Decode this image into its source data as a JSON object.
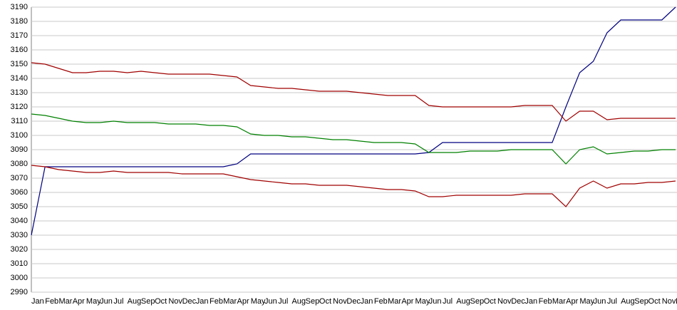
{
  "chart_data": {
    "type": "line",
    "categories": [
      "Jan",
      "Feb",
      "Mar",
      "Apr",
      "May",
      "Jun",
      "Jul",
      "Aug",
      "Sep",
      "Oct",
      "Nov",
      "Dec",
      "Jan",
      "Feb",
      "Mar",
      "Apr",
      "May",
      "Jun",
      "Jul",
      "Aug",
      "Sep",
      "Oct",
      "Nov",
      "Dec",
      "Jan",
      "Feb",
      "Mar",
      "Apr",
      "May",
      "Jun",
      "Jul",
      "Aug",
      "Sep",
      "Oct",
      "Nov",
      "Dec",
      "Jan",
      "Feb",
      "Mar",
      "Apr",
      "May",
      "Jun",
      "Jul",
      "Aug",
      "Sep",
      "Oct",
      "Nov",
      "Dec"
    ],
    "series": [
      {
        "color": "#000080",
        "values": [
          3030,
          3078,
          3078,
          3078,
          3078,
          3078,
          3078,
          3078,
          3078,
          3078,
          3078,
          3078,
          3078,
          3078,
          3078,
          3080,
          3087,
          3087,
          3087,
          3087,
          3087,
          3087,
          3087,
          3087,
          3087,
          3087,
          3087,
          3087,
          3087,
          3088,
          3095,
          3095,
          3095,
          3095,
          3095,
          3095,
          3095,
          3095,
          3095,
          3120,
          3144,
          3152,
          3172,
          3181,
          3181,
          3181,
          3181,
          3190
        ]
      },
      {
        "color": "#a00000",
        "values": [
          3151,
          3150,
          3147,
          3144,
          3144,
          3145,
          3145,
          3144,
          3145,
          3144,
          3143,
          3143,
          3143,
          3143,
          3142,
          3141,
          3135,
          3134,
          3133,
          3133,
          3132,
          3131,
          3131,
          3131,
          3130,
          3129,
          3128,
          3128,
          3128,
          3121,
          3120,
          3120,
          3120,
          3120,
          3120,
          3120,
          3121,
          3121,
          3121,
          3110,
          3117,
          3117,
          3111,
          3112,
          3112,
          3112,
          3112,
          3112
        ]
      },
      {
        "color": "#008000",
        "values": [
          3115,
          3114,
          3112,
          3110,
          3109,
          3109,
          3110,
          3109,
          3109,
          3109,
          3108,
          3108,
          3108,
          3107,
          3107,
          3106,
          3101,
          3100,
          3100,
          3099,
          3099,
          3098,
          3097,
          3097,
          3096,
          3095,
          3095,
          3095,
          3094,
          3088,
          3088,
          3088,
          3089,
          3089,
          3089,
          3090,
          3090,
          3090,
          3090,
          3080,
          3090,
          3092,
          3087,
          3088,
          3089,
          3089,
          3090,
          3090
        ]
      },
      {
        "color": "#a00000",
        "values": [
          3079,
          3078,
          3076,
          3075,
          3074,
          3074,
          3075,
          3074,
          3074,
          3074,
          3074,
          3073,
          3073,
          3073,
          3073,
          3071,
          3069,
          3068,
          3067,
          3066,
          3066,
          3065,
          3065,
          3065,
          3064,
          3063,
          3062,
          3062,
          3061,
          3057,
          3057,
          3058,
          3058,
          3058,
          3058,
          3058,
          3059,
          3059,
          3059,
          3050,
          3063,
          3068,
          3063,
          3066,
          3066,
          3067,
          3067,
          3068
        ]
      }
    ],
    "ylim": [
      2990,
      3190
    ],
    "yticks": [
      2990,
      3000,
      3010,
      3020,
      3030,
      3040,
      3050,
      3060,
      3070,
      3080,
      3090,
      3100,
      3110,
      3120,
      3130,
      3140,
      3150,
      3160,
      3170,
      3180,
      3190
    ],
    "grid": true
  }
}
